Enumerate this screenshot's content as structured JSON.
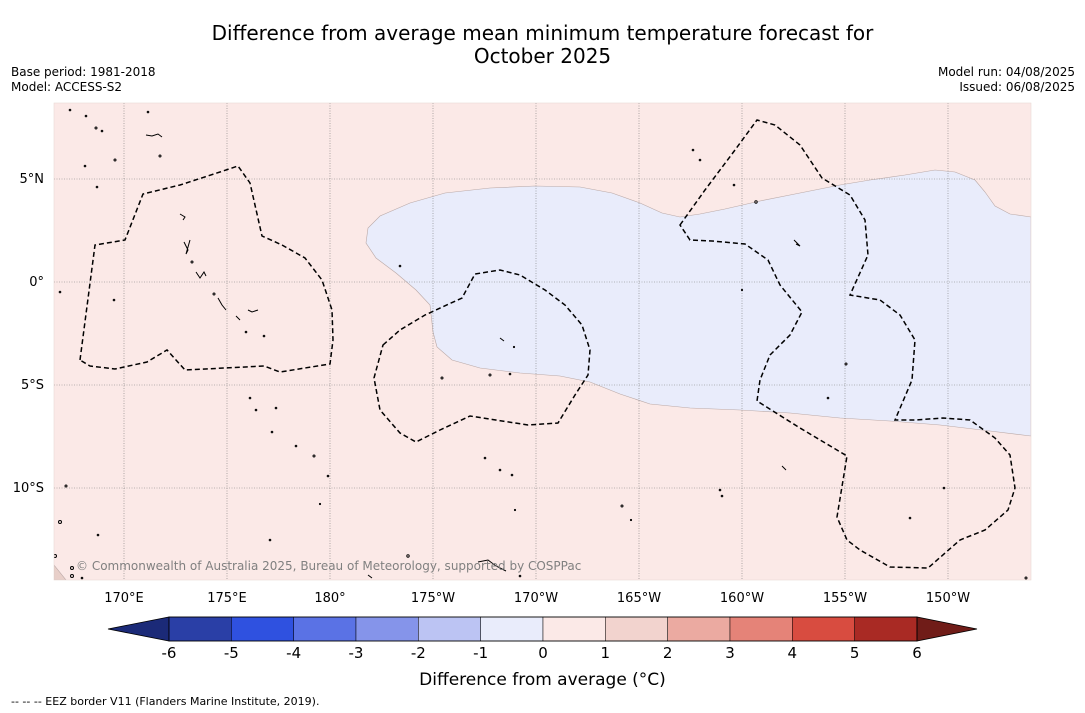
{
  "title": {
    "line1": "Difference from average mean minimum temperature forecast for",
    "line2": "October 2025"
  },
  "meta_left": {
    "base_period": "Base period: 1981-2018",
    "model": "Model: ACCESS-S2"
  },
  "meta_right": {
    "model_run": "Model run: 04/08/2025",
    "issued": "Issued: 06/08/2025"
  },
  "map": {
    "background_color": "#fbe9e7",
    "anomaly_region_color": "#e9ecfb",
    "anomaly_region_value": "-1 to 0",
    "lat_labels": [
      "5°N",
      "0°",
      "5°S",
      "10°S"
    ],
    "lon_labels": [
      "170°E",
      "175°E",
      "180°",
      "175°W",
      "170°W",
      "165°W",
      "160°W",
      "155°W",
      "150°W"
    ],
    "copyright": "© Commonwealth of Australia 2025, Bureau of Meteorology, supported by COSPPac"
  },
  "colorbar": {
    "ticks": [
      "-6",
      "-5",
      "-4",
      "-3",
      "-2",
      "-1",
      "0",
      "1",
      "2",
      "3",
      "4",
      "5",
      "6"
    ],
    "colors": [
      "#2a3fa6",
      "#2f51e0",
      "#5a72e5",
      "#8594ea",
      "#bcc4f3",
      "#e9ecfb",
      "#fbe9e7",
      "#f2d3ce",
      "#ebaaa1",
      "#e58378",
      "#d84c40",
      "#a92a24"
    ],
    "under_color": "#1b2a78",
    "over_color": "#701c18",
    "label": "Difference from average (°C)"
  },
  "footnote": "--  --  -- EEZ border V11 (Flanders Marine Institute, 2019)."
}
